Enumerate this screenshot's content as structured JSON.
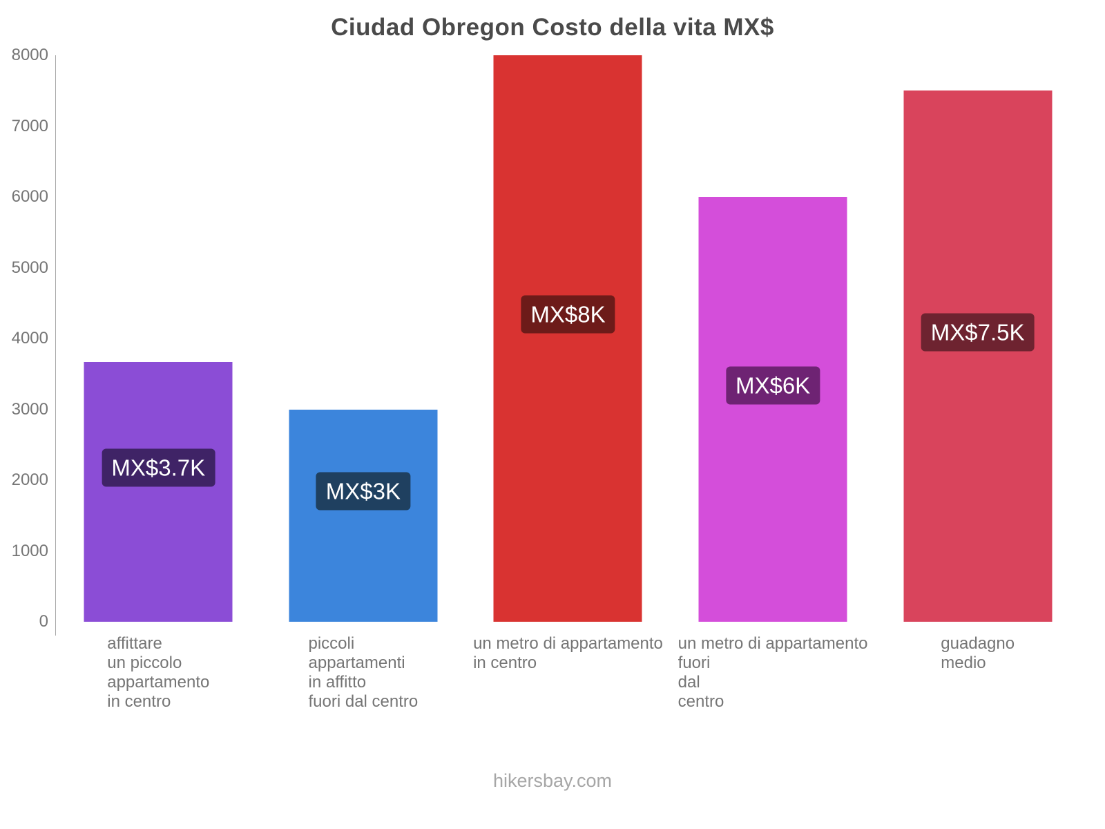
{
  "chart_data": {
    "type": "bar",
    "title": "Ciudad Obregon Costo della vita MX$",
    "currency": "MX$",
    "categories": [
      "affittare un piccolo appartamento in centro",
      "piccoli appartamenti in affitto fuori dal centro",
      "un metro di appartamento in centro",
      "un metro di appartamento fuori dal centro",
      "guadagno medio"
    ],
    "category_lines": [
      [
        "affittare",
        "un piccolo",
        "appartamento",
        "in centro"
      ],
      [
        "piccoli",
        "appartamenti",
        "in affitto",
        "fuori dal centro"
      ],
      [
        "un metro di appartamento",
        "in centro"
      ],
      [
        "un metro di appartamento",
        "fuori",
        "dal",
        "centro"
      ],
      [
        "guadagno",
        "medio"
      ]
    ],
    "values": [
      3666,
      3000,
      8000,
      6000,
      7500
    ],
    "value_labels": [
      "MX$3.7K",
      "MX$3K",
      "MX$8K",
      "MX$6K",
      "MX$7.5K"
    ],
    "bar_colors": [
      "#8b4dd6",
      "#3c85dc",
      "#d93331",
      "#d44eda",
      "#d9445c"
    ],
    "badge_colors": [
      "#3f2366",
      "#1f4060",
      "#6d1b19",
      "#6e2373",
      "#6e2330"
    ],
    "xlabel": "",
    "ylabel": "",
    "ylim": [
      0,
      8000
    ],
    "yticks": [
      "0",
      "1000",
      "2000",
      "3000",
      "4000",
      "5000",
      "6000",
      "7000",
      "8000"
    ],
    "grid": false,
    "legend": false
  },
  "footer": {
    "text": "hikersbay.com"
  }
}
